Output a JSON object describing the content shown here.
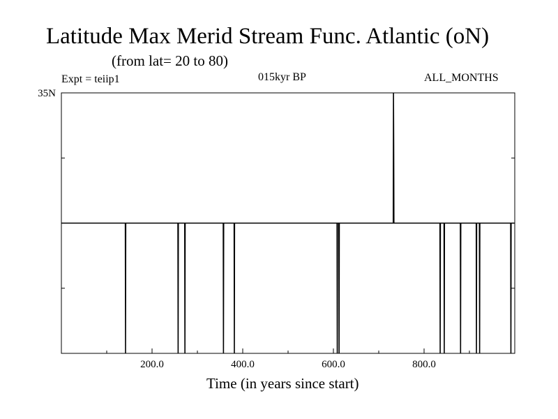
{
  "header": {
    "title": "Latitude Max Merid Stream Func. Atlantic (oN)",
    "subtitle": "(from lat= 20 to 80)",
    "experiment": "Expt = teiip1",
    "period": "015kyr BP",
    "season": "ALL_MONTHS"
  },
  "chart_data": {
    "type": "line",
    "title": "Latitude Max Merid Stream Func. Atlantic (oN)",
    "subtitle": "(from lat= 20 to 80)",
    "xlabel": "Time (in years since start)",
    "ylabel": "",
    "xlim": [
      0,
      1000
    ],
    "ylim": [
      20,
      35
    ],
    "x_ticks": [
      200,
      400,
      600,
      800
    ],
    "x_tick_labels": [
      "200.0",
      "400.0",
      "600.0",
      "800.0"
    ],
    "y_ticks": [
      35
    ],
    "y_tick_labels": [
      "35N"
    ],
    "line_color": "#000000",
    "grid": false,
    "series": [
      {
        "baseline": 27.5,
        "points": [
          {
            "x": 0,
            "y": 27.5
          },
          {
            "x": 141,
            "y": 27.5
          },
          {
            "x": 141.5,
            "y": 20
          },
          {
            "x": 142,
            "y": 27.5
          },
          {
            "x": 257,
            "y": 27.5
          },
          {
            "x": 257.5,
            "y": 20
          },
          {
            "x": 258,
            "y": 27.5
          },
          {
            "x": 272,
            "y": 27.5
          },
          {
            "x": 272.5,
            "y": 20
          },
          {
            "x": 273,
            "y": 27.5
          },
          {
            "x": 357,
            "y": 27.5
          },
          {
            "x": 357.5,
            "y": 20
          },
          {
            "x": 358,
            "y": 27.5
          },
          {
            "x": 381,
            "y": 27.5
          },
          {
            "x": 381.5,
            "y": 20
          },
          {
            "x": 382,
            "y": 27.5
          },
          {
            "x": 608,
            "y": 27.5
          },
          {
            "x": 608.5,
            "y": 20
          },
          {
            "x": 609,
            "y": 27.5
          },
          {
            "x": 612,
            "y": 27.5
          },
          {
            "x": 612.5,
            "y": 20
          },
          {
            "x": 613,
            "y": 27.5
          },
          {
            "x": 732,
            "y": 27.5
          },
          {
            "x": 732.5,
            "y": 35
          },
          {
            "x": 733,
            "y": 32
          },
          {
            "x": 733.5,
            "y": 27.5
          },
          {
            "x": 835,
            "y": 27.5
          },
          {
            "x": 835.5,
            "y": 20
          },
          {
            "x": 836,
            "y": 27.5
          },
          {
            "x": 844,
            "y": 27.5
          },
          {
            "x": 844.5,
            "y": 20
          },
          {
            "x": 845,
            "y": 27.5
          },
          {
            "x": 880,
            "y": 27.5
          },
          {
            "x": 880.5,
            "y": 20
          },
          {
            "x": 881,
            "y": 27.5
          },
          {
            "x": 915,
            "y": 27.5
          },
          {
            "x": 915.5,
            "y": 20
          },
          {
            "x": 916,
            "y": 27.5
          },
          {
            "x": 922,
            "y": 27.5
          },
          {
            "x": 922.5,
            "y": 20
          },
          {
            "x": 923,
            "y": 27.5
          },
          {
            "x": 991,
            "y": 27.5
          },
          {
            "x": 991.5,
            "y": 20
          },
          {
            "x": 992,
            "y": 27.5
          },
          {
            "x": 999,
            "y": 27.5
          }
        ]
      }
    ]
  }
}
